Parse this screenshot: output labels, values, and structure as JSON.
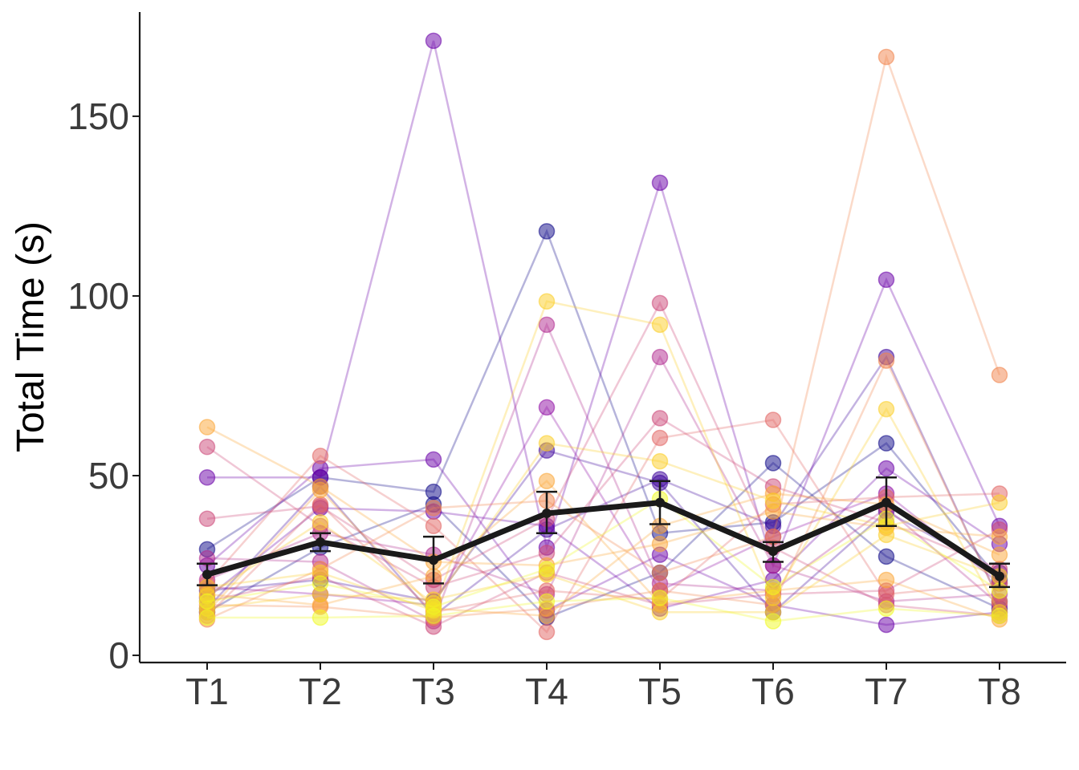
{
  "chart_data": {
    "type": "line",
    "title": "",
    "xlabel": "",
    "ylabel": "Total Time (s)",
    "categories": [
      "T1",
      "T2",
      "T3",
      "T4",
      "T5",
      "T6",
      "T7",
      "T8"
    ],
    "ylim": [
      -2,
      179
    ],
    "yticks": [
      0,
      50,
      100,
      150
    ],
    "grid": false,
    "legend": "none",
    "palette": [
      "#0d0887",
      "#3d049b",
      "#6a00a8",
      "#8f0da4",
      "#b12a90",
      "#cc4778",
      "#e16462",
      "#f1834b",
      "#fca636",
      "#fccd25",
      "#f0f921"
    ],
    "mean_series": {
      "color": "#1a1a1a",
      "values": [
        22.5,
        31.5,
        26.5,
        39.5,
        42.5,
        29.0,
        42.5,
        22.0
      ],
      "error_low": [
        19.5,
        29.0,
        20.0,
        34.0,
        36.5,
        26.0,
        36.0,
        19.0
      ],
      "error_high": [
        25.5,
        34.0,
        33.0,
        45.5,
        48.5,
        31.5,
        49.5,
        25.5
      ]
    },
    "subjects": [
      {
        "color": "#0d0887",
        "values": [
          29.5,
          49.5,
          45.5,
          118,
          34,
          37,
          59,
          21
        ]
      },
      {
        "color": "#0d0887",
        "values": [
          12,
          30,
          42,
          10.5,
          23,
          53.5,
          27.5,
          13
        ]
      },
      {
        "color": "#3d049b",
        "values": [
          13,
          47,
          11,
          35,
          49,
          36,
          83,
          15
        ]
      },
      {
        "color": "#3d049b",
        "values": [
          18,
          21,
          15,
          57,
          48,
          12,
          40,
          23
        ]
      },
      {
        "color": "#6a00a8",
        "values": [
          49.5,
          49.5,
          171,
          30,
          131.5,
          25,
          104.5,
          36
        ]
      },
      {
        "color": "#6a00a8",
        "values": [
          25,
          52,
          54.5,
          12.5,
          28,
          14,
          8.5,
          12
        ]
      },
      {
        "color": "#6a00a8",
        "values": [
          16,
          41,
          40,
          36,
          13,
          21,
          52,
          31
        ]
      },
      {
        "color": "#8f0da4",
        "values": [
          19,
          17,
          14,
          69,
          18,
          33,
          45,
          20
        ]
      },
      {
        "color": "#b12a90",
        "values": [
          21,
          34,
          28,
          17,
          83,
          25,
          15,
          17
        ]
      },
      {
        "color": "#b12a90",
        "values": [
          27,
          26,
          9.5,
          92,
          20,
          18,
          41,
          14
        ]
      },
      {
        "color": "#cc4778",
        "values": [
          15,
          22,
          8,
          23,
          14,
          17,
          18,
          35
        ]
      },
      {
        "color": "#cc4778",
        "values": [
          38,
          41.5,
          21,
          38,
          98,
          30,
          14,
          11
        ]
      },
      {
        "color": "#cc4778",
        "values": [
          58,
          36,
          19,
          28.5,
          66,
          47,
          37,
          24
        ]
      },
      {
        "color": "#e16462",
        "values": [
          11,
          42,
          12,
          18,
          15.5,
          42,
          44,
          45
        ]
      },
      {
        "color": "#e16462",
        "values": [
          20,
          55.5,
          36,
          6.5,
          60.5,
          65.5,
          17,
          20
        ]
      },
      {
        "color": "#f1834b",
        "values": [
          10,
          24,
          41,
          43,
          23,
          33,
          166.5,
          78
        ]
      },
      {
        "color": "#f1834b",
        "values": [
          14,
          13.5,
          10.5,
          13,
          18,
          14,
          82,
          15
        ]
      },
      {
        "color": "#fca636",
        "values": [
          63.5,
          47,
          26,
          25,
          31,
          40,
          35.5,
          33
        ]
      },
      {
        "color": "#fca636",
        "values": [
          17,
          14,
          22,
          48.5,
          14.5,
          18,
          21,
          10
        ]
      },
      {
        "color": "#fca636",
        "values": [
          12,
          46,
          13,
          11,
          36,
          45,
          42,
          28
        ]
      },
      {
        "color": "#fccd25",
        "values": [
          19,
          23,
          12.5,
          98.5,
          92,
          16,
          68.5,
          12
        ]
      },
      {
        "color": "#fccd25",
        "values": [
          16.5,
          37,
          14.5,
          59,
          54,
          43,
          36,
          42.5
        ]
      },
      {
        "color": "#fccd25",
        "values": [
          13,
          17,
          15.5,
          22.5,
          12,
          12,
          33.5,
          22
        ]
      },
      {
        "color": "#f0f921",
        "values": [
          10.5,
          10.5,
          11,
          15,
          16,
          9.5,
          13,
          11
        ]
      },
      {
        "color": "#f0f921",
        "values": [
          15,
          20,
          13.5,
          24,
          43.5,
          19,
          38,
          18
        ]
      }
    ]
  }
}
